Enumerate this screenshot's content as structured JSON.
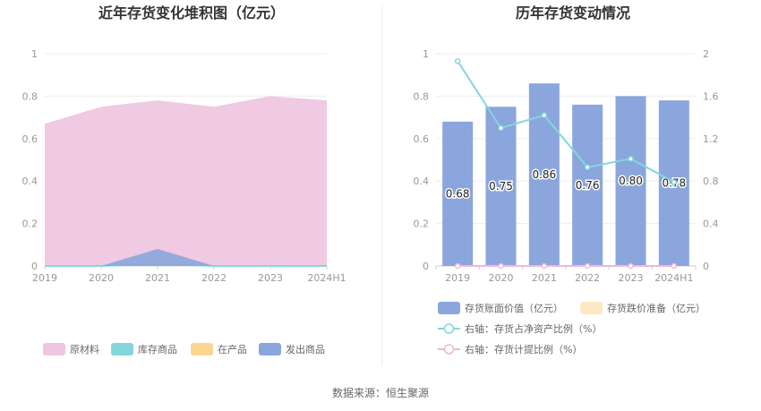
{
  "source": "数据来源：恒生聚源",
  "chart_data": [
    {
      "type": "area",
      "title": "近年存货变化堆积图（亿元）",
      "categories": [
        "2019",
        "2020",
        "2021",
        "2022",
        "2023",
        "2024H1"
      ],
      "ylim": [
        0,
        1
      ],
      "yticks": [
        "0",
        "0.2",
        "0.4",
        "0.6",
        "0.8",
        "1"
      ],
      "grid": true,
      "legend_position": "bottom",
      "stacked": true,
      "series": [
        {
          "name": "原材料",
          "color": "#efc6e1",
          "values": [
            0.67,
            0.75,
            0.78,
            0.75,
            0.8,
            0.78
          ]
        },
        {
          "name": "库存商品",
          "color": "#84d6dc",
          "values": [
            0.0,
            0.0,
            0.01,
            0.0,
            0.0,
            0.0
          ]
        },
        {
          "name": "在产品",
          "color": "#fbd691",
          "values": [
            0.0,
            0.0,
            0.0,
            0.0,
            0.0,
            0.0
          ]
        },
        {
          "name": "发出商品",
          "color": "#8aa6dc",
          "values": [
            0.0,
            0.0,
            0.08,
            0.0,
            0.0,
            0.0
          ]
        }
      ]
    },
    {
      "type": "bar",
      "title": "历年存货变动情况",
      "categories": [
        "2019",
        "2020",
        "2021",
        "2022",
        "2023",
        "2024H1"
      ],
      "ylim_left": [
        0,
        1
      ],
      "yticks_left": [
        "0",
        "0.2",
        "0.4",
        "0.6",
        "0.8",
        "1"
      ],
      "ylim_right": [
        0,
        2
      ],
      "yticks_right": [
        "0",
        "0.4",
        "0.8",
        "1.2",
        "1.6",
        "2"
      ],
      "grid": true,
      "legend_position": "bottom",
      "series": [
        {
          "name": "存货账面价值（亿元）",
          "kind": "bar",
          "axis": "left",
          "color": "#8aa6dc",
          "values": [
            0.68,
            0.75,
            0.86,
            0.76,
            0.8,
            0.78
          ],
          "labels": [
            "0.68",
            "0.75",
            "0.86",
            "0.76",
            "0.80",
            "0.78"
          ]
        },
        {
          "name": "存货跌价准备（亿元）",
          "kind": "bar",
          "axis": "left",
          "color": "#fde8c4",
          "values": [
            0,
            0,
            0,
            0,
            0,
            0
          ]
        },
        {
          "name": "右轴：存货占净资产比例（%）",
          "kind": "line",
          "axis": "right",
          "color": "#84d6dc",
          "values": [
            1.93,
            1.3,
            1.42,
            0.93,
            1.01,
            0.79
          ]
        },
        {
          "name": "右轴：存货计提比例（%）",
          "kind": "line",
          "axis": "right",
          "color": "#efb7d8",
          "values": [
            0,
            0,
            0,
            0,
            0,
            0
          ]
        }
      ]
    }
  ]
}
